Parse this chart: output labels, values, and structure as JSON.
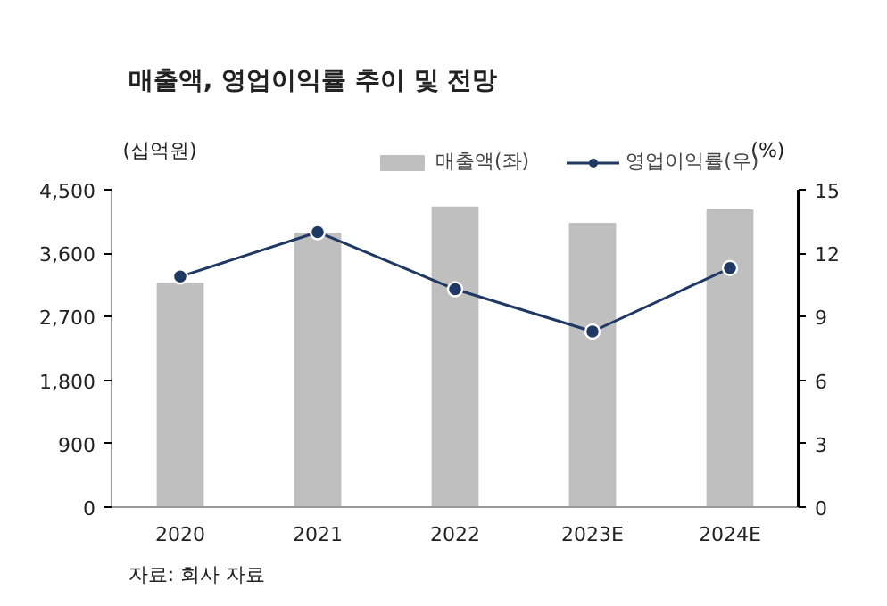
{
  "chart_data": {
    "type": "bar",
    "title": "매출액, 영업이익률 추이 및 전망",
    "ylabel": "(십억원)",
    "y2label": "(%)",
    "categories": [
      "2020",
      "2021",
      "2022",
      "2023E",
      "2024E"
    ],
    "series": [
      {
        "name": "매출액(좌)",
        "color": "#bfbfbf",
        "values": [
          3170,
          3880,
          4250,
          4020,
          4210
        ]
      },
      {
        "name": "영업이익률(우)",
        "type": "line",
        "axis": "y2",
        "color": "#1f3864",
        "marker": "circle",
        "values": [
          10.9,
          13.0,
          10.3,
          8.3,
          11.3
        ]
      }
    ],
    "ylim": [
      0,
      4500
    ],
    "yticks": [
      {
        "value": 0,
        "label": "0"
      },
      {
        "value": 900,
        "label": "900"
      },
      {
        "value": 1800,
        "label": "1,800"
      },
      {
        "value": 2700,
        "label": "2,700"
      },
      {
        "value": 3600,
        "label": "3,600"
      },
      {
        "value": 4500,
        "label": "4,500"
      }
    ],
    "y2lim": [
      0,
      15
    ],
    "y2ticks": [
      0,
      3,
      6,
      9,
      12,
      15
    ],
    "grid": false,
    "legend": "top",
    "annotations": [
      "자료: 회사 자료"
    ]
  }
}
